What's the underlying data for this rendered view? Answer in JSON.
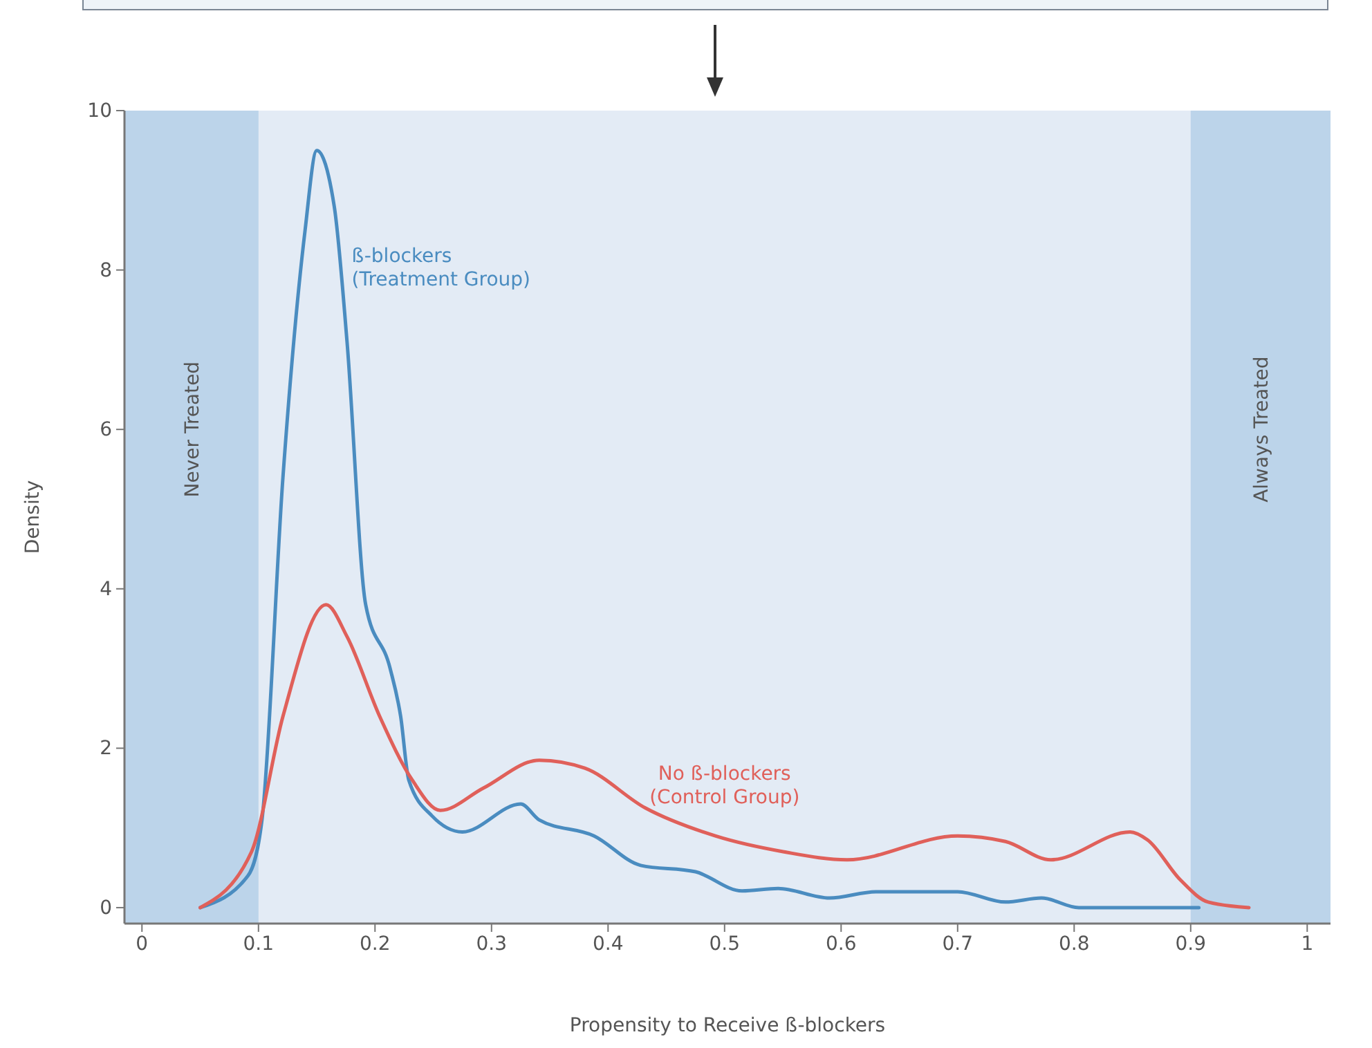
{
  "chart_data": {
    "type": "line",
    "xlabel": "Propensity to Receive ß-blockers",
    "ylabel": "Density",
    "xlim": [
      -0.015,
      1.02
    ],
    "ylim": [
      -0.2,
      10
    ],
    "xticks": [
      0,
      0.1,
      0.2,
      0.3,
      0.4,
      0.5,
      0.6,
      0.7,
      0.8,
      0.9,
      1
    ],
    "yticks": [
      0,
      2,
      4,
      6,
      8,
      10
    ],
    "grid": false,
    "legend": false,
    "marker": "none",
    "line_style": "solid",
    "bands": [
      {
        "axis": "x",
        "from": -0.015,
        "to": 0.1,
        "label": "Never Treated",
        "color": "#bcd4ea"
      },
      {
        "axis": "x",
        "from": 0.9,
        "to": 1.02,
        "label": "Always Treated",
        "color": "#bcd4ea"
      }
    ],
    "series": [
      {
        "name": "ß-blockers (Treatment Group)",
        "color": "#4a8cc0",
        "x": [
          0.05,
          0.091,
          0.103,
          0.121,
          0.14,
          0.15,
          0.165,
          0.176,
          0.192,
          0.213,
          0.222,
          0.229,
          0.249,
          0.275,
          0.325,
          0.341,
          0.388,
          0.428,
          0.475,
          0.515,
          0.546,
          0.59,
          0.63,
          0.7,
          0.741,
          0.772,
          0.804,
          0.907
        ],
        "values": [
          0,
          0.4,
          1.1,
          5.4,
          8.5,
          9.5,
          8.8,
          7.1,
          3.8,
          3.0,
          2.4,
          1.6,
          1.15,
          0.95,
          1.3,
          1.1,
          0.9,
          0.53,
          0.45,
          0.21,
          0.24,
          0.12,
          0.2,
          0.2,
          0.07,
          0.12,
          0,
          0
        ]
      },
      {
        "name": "No ß-blockers (Control Group)",
        "color": "#e0605a",
        "x": [
          0.05,
          0.094,
          0.121,
          0.158,
          0.176,
          0.204,
          0.232,
          0.256,
          0.293,
          0.341,
          0.38,
          0.432,
          0.492,
          0.551,
          0.605,
          0.7,
          0.741,
          0.78,
          0.848,
          0.863,
          0.891,
          0.915,
          0.95
        ],
        "values": [
          0,
          0.7,
          2.4,
          3.8,
          3.4,
          2.4,
          1.6,
          1.22,
          1.5,
          1.85,
          1.75,
          1.25,
          0.9,
          0.7,
          0.6,
          0.9,
          0.83,
          0.6,
          0.95,
          0.85,
          0.35,
          0.07,
          0
        ]
      }
    ]
  }
}
